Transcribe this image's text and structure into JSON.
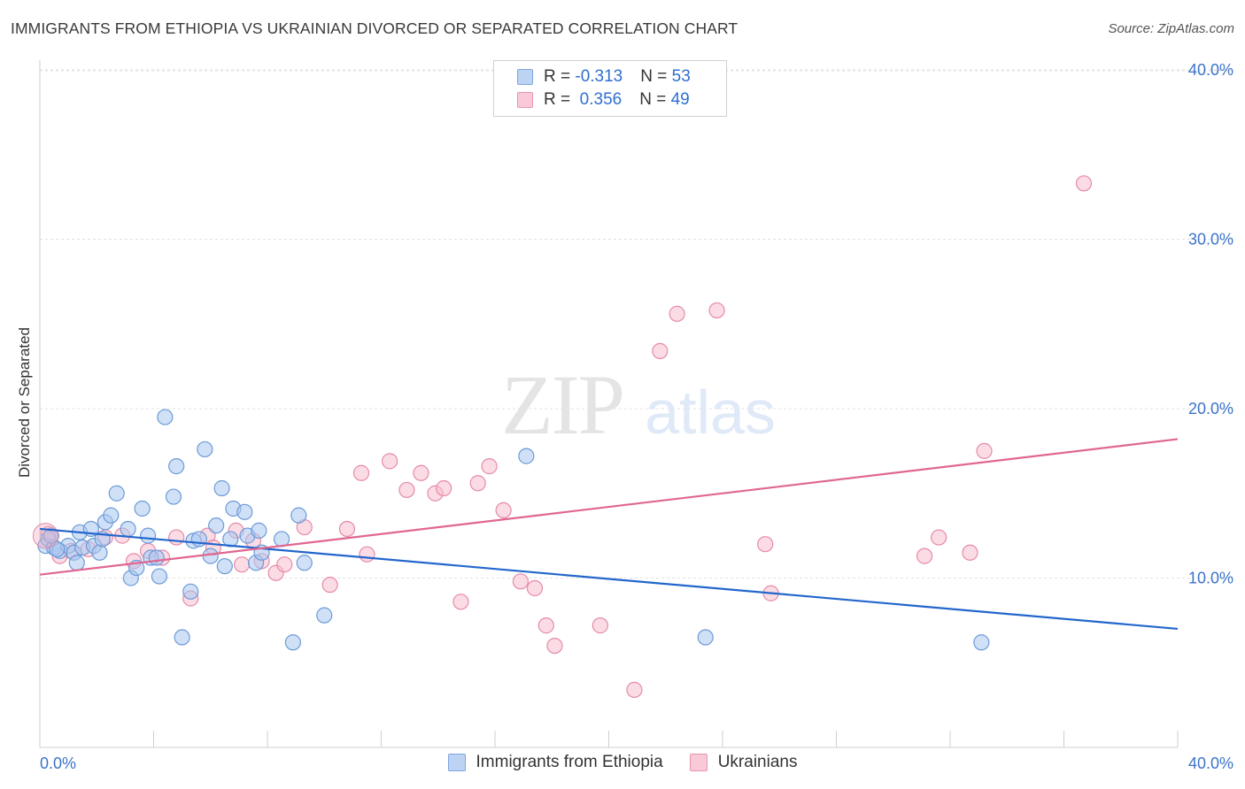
{
  "title": "IMMIGRANTS FROM ETHIOPIA VS UKRAINIAN DIVORCED OR SEPARATED CORRELATION CHART",
  "source": "Source: ZipAtlas.com",
  "watermark": {
    "zip": "ZIP",
    "atlas": "atlas"
  },
  "legend": {
    "rows": [
      {
        "r_label": "R = ",
        "r_value": "-0.313",
        "n_label": "N = ",
        "n_value": "53"
      },
      {
        "r_label": "R = ",
        "r_value": " 0.356",
        "n_label": "N = ",
        "n_value": "49"
      }
    ]
  },
  "chart_data": {
    "type": "scatter",
    "ylabel": "Divorced or Separated",
    "xlim": [
      0,
      40
    ],
    "ylim": [
      0,
      40
    ],
    "x_tick_labels": [
      "0.0%",
      "40.0%"
    ],
    "y_ticks": [
      10,
      20,
      30,
      40
    ],
    "y_tick_labels": [
      "10.0%",
      "20.0%",
      "30.0%",
      "40.0%"
    ],
    "grid": true,
    "legend_position": "top-center",
    "series": [
      {
        "name": "Immigrants from Ethiopia",
        "color": "#a9c8f0",
        "stroke": "#6c9ad8",
        "line_color": "#2266cc",
        "trend": [
          [
            0,
            12.9
          ],
          [
            40,
            7.0
          ]
        ],
        "points": [
          [
            0.2,
            11.9
          ],
          [
            0.3,
            12.3
          ],
          [
            0.5,
            11.8
          ],
          [
            0.7,
            11.6
          ],
          [
            1.0,
            11.9
          ],
          [
            1.2,
            11.5
          ],
          [
            1.3,
            10.9
          ],
          [
            1.4,
            12.7
          ],
          [
            1.5,
            11.8
          ],
          [
            1.8,
            12.9
          ],
          [
            1.9,
            11.9
          ],
          [
            2.1,
            11.5
          ],
          [
            2.2,
            12.3
          ],
          [
            2.3,
            13.3
          ],
          [
            2.5,
            13.7
          ],
          [
            2.7,
            15.0
          ],
          [
            3.1,
            12.9
          ],
          [
            3.2,
            10.0
          ],
          [
            3.4,
            10.6
          ],
          [
            3.6,
            14.1
          ],
          [
            3.8,
            12.5
          ],
          [
            3.9,
            11.2
          ],
          [
            4.1,
            11.2
          ],
          [
            4.2,
            10.1
          ],
          [
            4.4,
            19.5
          ],
          [
            4.7,
            14.8
          ],
          [
            4.8,
            16.6
          ],
          [
            5.0,
            6.5
          ],
          [
            5.3,
            9.2
          ],
          [
            5.4,
            12.2
          ],
          [
            5.6,
            12.3
          ],
          [
            5.8,
            17.6
          ],
          [
            6.0,
            11.3
          ],
          [
            6.2,
            13.1
          ],
          [
            6.4,
            15.3
          ],
          [
            6.5,
            10.7
          ],
          [
            6.7,
            12.3
          ],
          [
            6.8,
            14.1
          ],
          [
            7.2,
            13.9
          ],
          [
            7.3,
            12.5
          ],
          [
            7.6,
            10.9
          ],
          [
            7.7,
            12.8
          ],
          [
            7.8,
            11.5
          ],
          [
            8.5,
            12.3
          ],
          [
            8.9,
            6.2
          ],
          [
            9.1,
            13.7
          ],
          [
            9.3,
            10.9
          ],
          [
            10.0,
            7.8
          ],
          [
            17.1,
            17.2
          ],
          [
            23.4,
            6.5
          ],
          [
            33.1,
            6.2
          ],
          [
            0.4,
            12.5
          ],
          [
            0.6,
            11.7
          ]
        ]
      },
      {
        "name": "Ukrainians",
        "color": "#f7bfd0",
        "stroke": "#e58aa8",
        "line_color": "#e06690",
        "trend": [
          [
            0,
            10.2
          ],
          [
            40,
            18.2
          ]
        ],
        "points": [
          [
            0.3,
            12.6
          ],
          [
            0.7,
            11.3
          ],
          [
            1.1,
            11.6
          ],
          [
            1.7,
            11.7
          ],
          [
            2.3,
            12.4
          ],
          [
            2.9,
            12.5
          ],
          [
            3.3,
            11.0
          ],
          [
            3.8,
            11.6
          ],
          [
            4.3,
            11.2
          ],
          [
            4.8,
            12.4
          ],
          [
            5.3,
            8.8
          ],
          [
            5.9,
            12.5
          ],
          [
            6.1,
            11.8
          ],
          [
            6.9,
            12.8
          ],
          [
            7.1,
            10.8
          ],
          [
            7.5,
            12.2
          ],
          [
            7.8,
            11.0
          ],
          [
            8.3,
            10.3
          ],
          [
            8.6,
            10.8
          ],
          [
            9.3,
            13.0
          ],
          [
            10.2,
            9.6
          ],
          [
            10.8,
            12.9
          ],
          [
            11.3,
            16.2
          ],
          [
            11.5,
            11.4
          ],
          [
            12.3,
            16.9
          ],
          [
            12.9,
            15.2
          ],
          [
            13.4,
            16.2
          ],
          [
            13.9,
            15.0
          ],
          [
            14.2,
            15.3
          ],
          [
            14.8,
            8.6
          ],
          [
            15.4,
            15.6
          ],
          [
            15.8,
            16.6
          ],
          [
            16.3,
            14.0
          ],
          [
            16.9,
            9.8
          ],
          [
            17.4,
            9.4
          ],
          [
            17.8,
            7.2
          ],
          [
            18.1,
            6.0
          ],
          [
            19.7,
            7.2
          ],
          [
            20.9,
            3.4
          ],
          [
            21.8,
            23.4
          ],
          [
            22.4,
            25.6
          ],
          [
            23.8,
            25.8
          ],
          [
            25.5,
            12.0
          ],
          [
            25.7,
            9.1
          ],
          [
            31.1,
            11.3
          ],
          [
            31.6,
            12.4
          ],
          [
            32.7,
            11.5
          ],
          [
            33.2,
            17.5
          ],
          [
            36.7,
            33.3
          ]
        ]
      }
    ]
  }
}
